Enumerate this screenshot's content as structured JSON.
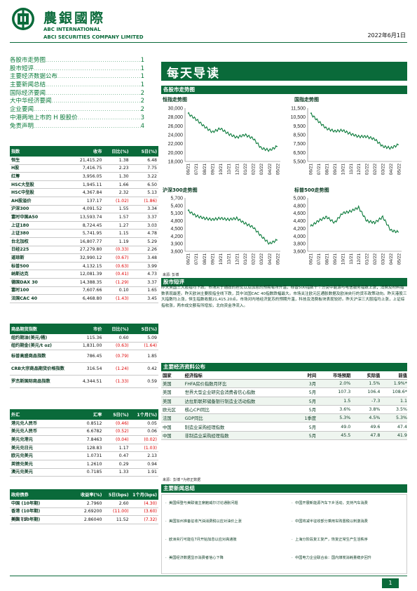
{
  "header": {
    "brand_cn": "農銀國際",
    "brand_en1": "ABC INTERNATIONAL",
    "brand_en2": "ABCI SECURITIES COMPANY LIMITED",
    "date": "2022年6月1日"
  },
  "toc": [
    {
      "title": "各股市走势图",
      "page": "1"
    },
    {
      "title": "股市短评",
      "page": "1"
    },
    {
      "title": "主要经济数据公布",
      "page": "1"
    },
    {
      "title": "主要新闻总结",
      "page": "1"
    },
    {
      "title": "国际经济要闻",
      "page": "2"
    },
    {
      "title": "大中华经济要闻",
      "page": "2"
    },
    {
      "title": "企业要闻",
      "page": "2"
    },
    {
      "title": "中港两地上市的 H 股股价",
      "page": "3"
    },
    {
      "title": "免责声明",
      "page": "4"
    }
  ],
  "indices": {
    "headers": [
      "指数",
      "收市",
      "日比(%)",
      "5日(%)"
    ],
    "rows": [
      {
        "name": "恒生",
        "close": "21,415.20",
        "d1": "1.38",
        "d5": "6.48"
      },
      {
        "name": "H股",
        "close": "7,416.75",
        "d1": "2.23",
        "d5": "7.75"
      },
      {
        "name": "红筹",
        "close": "3,956.05",
        "d1": "1.30",
        "d5": "3.22"
      },
      {
        "name": "HSC大型股",
        "close": "1,945.11",
        "d1": "1.66",
        "d5": "6.50"
      },
      {
        "name": "HSC中型股",
        "close": "4,367.84",
        "d1": "2.32",
        "d5": "5.13"
      },
      {
        "name": "AH股溢价",
        "close": "137.17",
        "d1": "(1.02)",
        "d5": "(1.86)",
        "d1neg": true,
        "d5neg": true
      },
      {
        "name": "沪深300",
        "close": "4,091.52",
        "d1": "1.55",
        "d5": "3.34"
      },
      {
        "name": "富时中国A50",
        "close": "13,593.74",
        "d1": "1.57",
        "d5": "3.37"
      },
      {
        "name": "上证180",
        "close": "8,724.45",
        "d1": "1.27",
        "d5": "3.03"
      },
      {
        "name": "上证380",
        "close": "5,741.95",
        "d1": "1.15",
        "d5": "4.78"
      },
      {
        "name": "台北加权",
        "close": "16,807.77",
        "d1": "1.19",
        "d5": "5.29"
      },
      {
        "name": "日经225",
        "close": "27,279.80",
        "d1": "(0.33)",
        "d5": "2.26",
        "d1neg": true
      },
      {
        "name": "道琼斯",
        "close": "32,990.12",
        "d1": "(0.67)",
        "d5": "3.48",
        "d1neg": true
      },
      {
        "name": "标普500",
        "close": "4,132.15",
        "d1": "(0.63)",
        "d5": "3.99",
        "d1neg": true
      },
      {
        "name": "纳斯达克",
        "close": "12,081.39",
        "d1": "(0.41)",
        "d5": "4.73",
        "d1neg": true
      },
      {
        "name": "德国DAX 30",
        "close": "14,388.35",
        "d1": "(1.29)",
        "d5": "3.37",
        "d1neg": true
      },
      {
        "name": "富时100",
        "close": "7,607.66",
        "d1": "0.10",
        "d5": "1.65"
      },
      {
        "name": "法国CAC 40",
        "close": "6,468.80",
        "d1": "(1.43)",
        "d5": "3.45",
        "d1neg": true
      }
    ]
  },
  "commodities": {
    "headers": [
      "商品期货指数",
      "市价",
      "日比(%)",
      "5日(%)"
    ],
    "rows": [
      {
        "name": "纽约期油(美元/桶)",
        "close": "115.36",
        "d1": "0.60",
        "d5": "5.09"
      },
      {
        "name": "纽约期金(美元/t oz)",
        "close": "1,831.00",
        "d1": "(0.63)",
        "d5": "(1.64)",
        "d1neg": true,
        "d5neg": true
      },
      {
        "name": "标普高盛商品指数",
        "close": "786.45",
        "d1": "(0.79)",
        "d5": "1.85",
        "d1neg": true,
        "tall": true
      },
      {
        "name": "CRB大宗商品期货价格指数",
        "close": "316.54",
        "d1": "(1.24)",
        "d5": "0.42",
        "d1neg": true,
        "tall": true
      },
      {
        "name": "罗杰斯国际商品指数",
        "close": "4,344.51",
        "d1": "(1.33)",
        "d5": "0.59",
        "d1neg": true,
        "tall": true
      }
    ]
  },
  "fx": {
    "headers": [
      "外汇",
      "汇率",
      "5日(%)",
      "1个月(%)"
    ],
    "rows": [
      {
        "name": "港元兑人民币",
        "close": "0.8512",
        "d1": "(0.46)",
        "d5": "0.05",
        "d1neg": true
      },
      {
        "name": "美元兑人民币",
        "close": "6.6782",
        "d1": "(0.52)",
        "d5": "0.06",
        "d1neg": true
      },
      {
        "name": "美元兑港元",
        "close": "7.8463",
        "d1": "(0.04)",
        "d5": "(0.02)",
        "d1neg": true,
        "d5neg": true
      },
      {
        "name": "美元兑日元",
        "close": "128.83",
        "d1": "1.17",
        "d5": "(1.03)",
        "d5neg": true
      },
      {
        "name": "欧元兑美元",
        "close": "1.0731",
        "d1": "0.47",
        "d5": "2.13"
      },
      {
        "name": "英镑兑美元",
        "close": "1.2610",
        "d1": "0.29",
        "d5": "0.94"
      },
      {
        "name": "澳元兑美元",
        "close": "0.7185",
        "d1": "1.33",
        "d5": "1.91"
      }
    ]
  },
  "bonds": {
    "headers": [
      "政府债券",
      "收益率(%)",
      "5日(bps)",
      "1个月(bps)"
    ],
    "rows": [
      {
        "name": "中国 (10年期)",
        "close": "2.7960",
        "d1": "2.60",
        "d5": "(4.30)",
        "d5neg": true
      },
      {
        "name": "香港 (10年期)",
        "close": "2.69200",
        "d1": "(11.00)",
        "d5": "(3.60)",
        "d1neg": true,
        "d5neg": true
      },
      {
        "name": "美国 (10年期)",
        "close": "2.86040",
        "d1": "11.52",
        "d5": "(7.32)",
        "d5neg": true
      }
    ]
  },
  "source_label": "来源: 彭博",
  "title": "每天导读",
  "sections": {
    "charts": "各股市走势图",
    "commentary": "股市短评",
    "econ": "主要经济资料公布",
    "news": "主要新闻总结"
  },
  "chart_data": [
    {
      "type": "line",
      "title": "恒指走势图",
      "x": [
        "06/21",
        "07/21",
        "08/21",
        "09/21",
        "10/21",
        "11/21",
        "12/21",
        "01/22",
        "02/22",
        "03/22",
        "04/22",
        "05/22"
      ],
      "values": [
        28800,
        27500,
        25900,
        24600,
        25400,
        24200,
        23400,
        24000,
        23200,
        21000,
        20500,
        21400
      ],
      "ylim": [
        18000,
        30000
      ],
      "yticks": [
        "30,000",
        "28,000",
        "26,000",
        "24,000",
        "22,000",
        "20,000",
        "18,000"
      ]
    },
    {
      "type": "line",
      "title": "国指走势图",
      "x": [
        "06/21",
        "07/21",
        "08/21",
        "09/21",
        "10/21",
        "11/21",
        "12/21",
        "01/22",
        "02/22",
        "03/22",
        "04/22",
        "05/22"
      ],
      "values": [
        10900,
        10000,
        9200,
        8900,
        9000,
        8600,
        8300,
        8300,
        8000,
        7200,
        7000,
        7400
      ],
      "ylim": [
        5500,
        11500
      ],
      "yticks": [
        "11,500",
        "10,500",
        "9,500",
        "8,500",
        "7,500",
        "6,500",
        "5,500"
      ]
    },
    {
      "type": "line",
      "title": "沪深300走势图",
      "x": [
        "06/21",
        "07/21",
        "08/21",
        "09/21",
        "10/21",
        "11/21",
        "12/21",
        "01/22",
        "02/22",
        "03/22",
        "04/22",
        "05/22"
      ],
      "values": [
        5200,
        5000,
        4900,
        4850,
        4900,
        4850,
        4900,
        4700,
        4550,
        4200,
        3900,
        4050
      ],
      "ylim": [
        3600,
        5700
      ],
      "yticks": [
        "5,700",
        "5,400",
        "5,100",
        "4,800",
        "4,500",
        "4,200",
        "3,900",
        "3,600"
      ]
    },
    {
      "type": "line",
      "title": "标普500走势图",
      "x": [
        "06/21",
        "07/21",
        "08/21",
        "09/21",
        "10/21",
        "11/21",
        "12/21",
        "01/22",
        "02/22",
        "03/22",
        "04/22",
        "05/22"
      ],
      "values": [
        4250,
        4400,
        4500,
        4350,
        4600,
        4650,
        4750,
        4400,
        4350,
        4500,
        4150,
        4100
      ],
      "ylim": [
        3600,
        5000
      ],
      "yticks": [
        "5,000",
        "4,800",
        "4,600",
        "4,400",
        "4,200",
        "4,000",
        "3,800",
        "3,600"
      ]
    }
  ],
  "commentary": "昨天美国三大股指均下跌。市场对于通胀的担忧以及加息的预期有所升温，标普500指数十个分类中能源与电信服务指数上涨；消费及材料指数表现最差。昨天欧洲主要股指全线下跌，其中法国CAC 40指数跌幅最大。市场关注欧元区通胀数据及欧洲央行的货币政策动向。昨天港股三大指数均上涨，恒生指数收报21,415.20点。市场对内地经济复苏的预期升温，科技及消费板块表现较好。昨天沪深三大股指均上涨，上证综指收涨，两市成交额有所增加，北向资金净流入。",
  "econ": {
    "headers": [
      "国家",
      "经济指标",
      "时间",
      "市场预期",
      "实际值",
      "前值"
    ],
    "rows": [
      {
        "country": "美国",
        "indicator": "FHFA房价指数月环比",
        "time": "3月",
        "exp": "2.0%",
        "act": "1.5%",
        "prev": "1.9%*"
      },
      {
        "country": "美国",
        "indicator": "世界大型企业研究会消费者信心指数",
        "time": "5月",
        "exp": "107.3",
        "act": "106.4",
        "prev": "108.6*"
      },
      {
        "country": "美国",
        "indicator": "达拉斯联邦储备银行制造业活动指数",
        "time": "5月",
        "exp": "1.5",
        "act": "-7.3",
        "prev": "1.1"
      },
      {
        "country": "欧元区",
        "indicator": "核心CPI同比",
        "time": "5月",
        "exp": "3.6%",
        "act": "3.8%",
        "prev": "3.5%"
      },
      {
        "country": "法国",
        "indicator": "GDP同比",
        "time": "1季度",
        "exp": "5.3%",
        "act": "4.5%",
        "prev": "5.3%"
      },
      {
        "country": "中国",
        "indicator": "制造业采购经理指数",
        "time": "5月",
        "exp": "49.0",
        "act": "49.6",
        "prev": "47.4"
      },
      {
        "country": "中国",
        "indicator": "非制造业采购经理指数",
        "time": "5月",
        "exp": "45.5",
        "act": "47.8",
        "prev": "41.9"
      }
    ],
    "note": "来源：彭博   *为修正数据"
  },
  "news": [
    "美国拜登与美联储主席鲍威尔讨论通胀问题",
    "中国开展新能源汽车下乡活动，支持汽车消费",
    "美国加州准备征收汽油消费税以应对油价上涨",
    "中国将减半征收部分乘用车购置税以刺激消费",
    "欧洲央行可能在7月开始加息以应对高通胀",
    "上海分阶段复工复产，恢复正常生产生活秩序",
    "美国经济数据显示消费者信心下降",
    "中国电力企业联合会：国内煤炭消耗量稳步回升"
  ],
  "page_number": "1"
}
